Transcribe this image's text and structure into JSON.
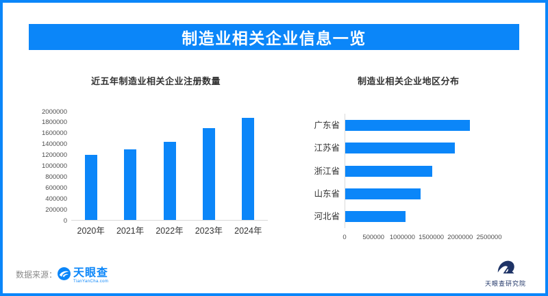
{
  "header": {
    "title": "制造业相关企业信息一览"
  },
  "colors": {
    "primary": "#0b86f9",
    "navy": "#1e3366",
    "axis_line": "#d9d9d9"
  },
  "chart_data": [
    {
      "type": "bar",
      "orientation": "vertical",
      "title": "近五年制造业相关企业注册数量",
      "categories": [
        "2020年",
        "2021年",
        "2022年",
        "2023年",
        "2024年"
      ],
      "values": [
        1200000,
        1310000,
        1440000,
        1700000,
        1890000
      ],
      "ylabel": "",
      "xlabel": "",
      "ylim": [
        0,
        2000000
      ],
      "ytick_step": 200000,
      "grid": false,
      "legend": false,
      "bar_color": "#0b86f9"
    },
    {
      "type": "bar",
      "orientation": "horizontal",
      "title": "制造业相关企业地区分布",
      "categories": [
        "广东省",
        "江苏省",
        "浙江省",
        "山东省",
        "河北省"
      ],
      "values": [
        2170000,
        1900000,
        1510000,
        1310000,
        1050000
      ],
      "ylabel": "",
      "xlabel": "",
      "xlim": [
        0,
        2500000
      ],
      "xtick_step": 500000,
      "grid": false,
      "legend": false,
      "bar_color": "#0b86f9"
    }
  ],
  "footer": {
    "source_label": "数据来源：",
    "logo_name": "天眼查",
    "logo_sub": "TianYanCha.com",
    "institute_name": "天眼查研究院"
  }
}
